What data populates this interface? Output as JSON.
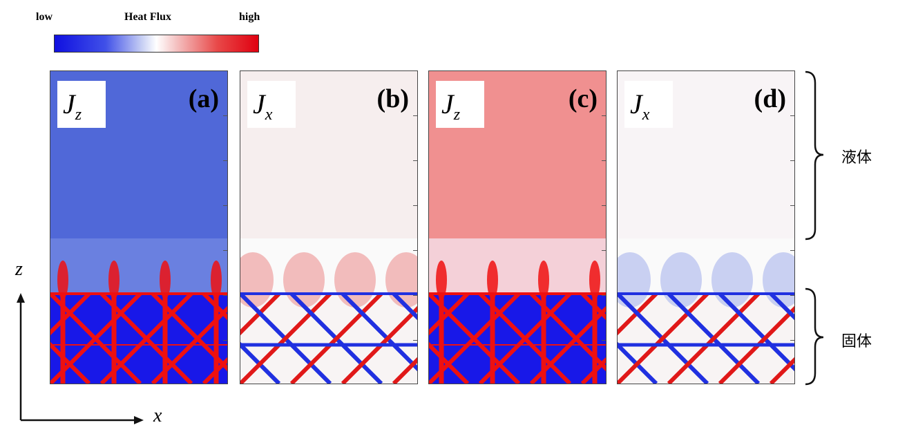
{
  "colorbar": {
    "low": "low",
    "title": "Heat Flux",
    "high": "high",
    "low_color": "#1010e0",
    "mid_color": "#ffffff",
    "high_color": "#e00010"
  },
  "panels": [
    {
      "tag": "(a)",
      "component": "J",
      "subscript": "z",
      "liquid": "#5068d8",
      "solid": "#1818e8",
      "lattice": "#ee1010",
      "interface_glow": "#ee1010"
    },
    {
      "tag": "(b)",
      "component": "J",
      "subscript": "x",
      "liquid": "#f6eeee",
      "solid": "#f8f4f4",
      "lattice": "#2030e0",
      "interface_glow": "#f0b0b0"
    },
    {
      "tag": "(c)",
      "component": "J",
      "subscript": "z",
      "liquid": "#f09090",
      "solid": "#1818e8",
      "lattice": "#ee1010",
      "interface_glow": "#ee1010"
    },
    {
      "tag": "(d)",
      "component": "J",
      "subscript": "x",
      "liquid": "#f8f4f6",
      "solid": "#f8f4f4",
      "lattice": "#2030e0",
      "interface_glow": "#c0c8f0"
    }
  ],
  "phases": {
    "liquid": "液体",
    "solid": "固体"
  },
  "axes": {
    "vertical": "z",
    "horizontal": "x"
  }
}
